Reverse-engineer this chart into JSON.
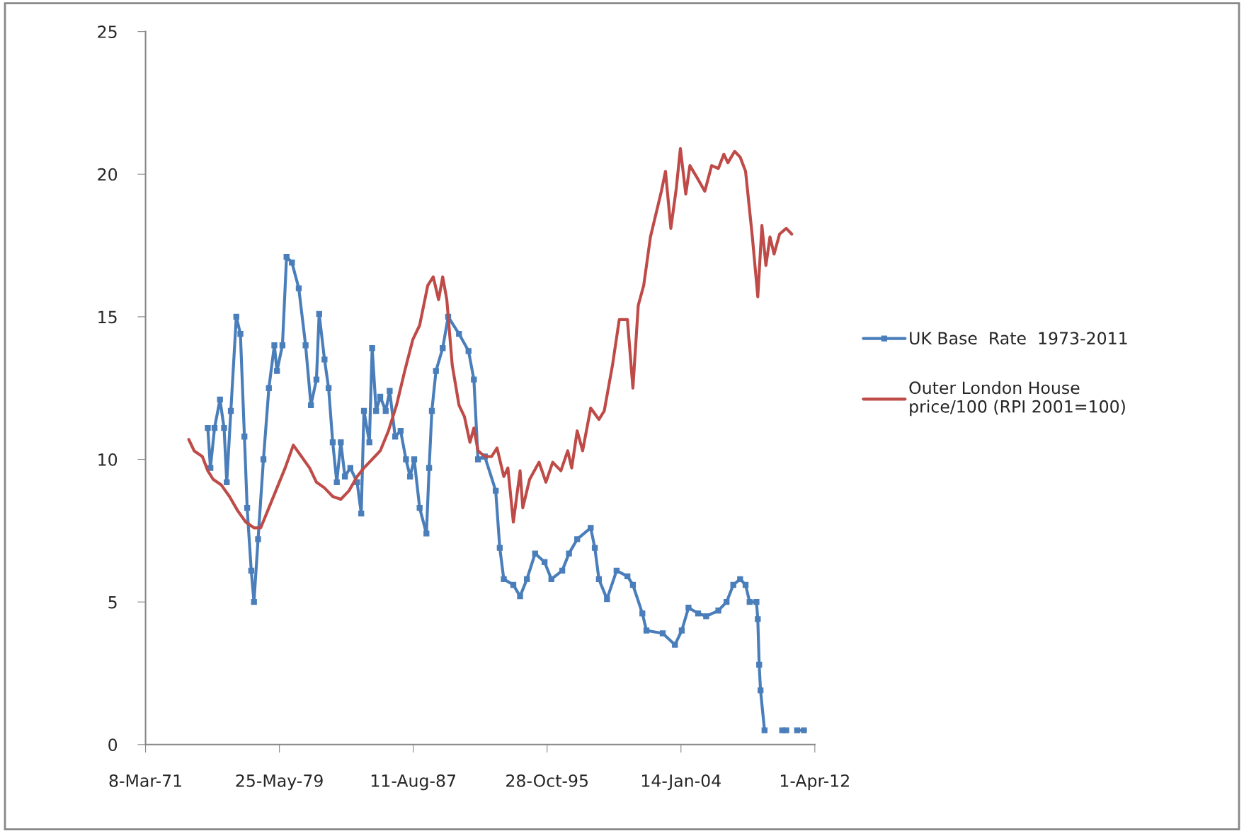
{
  "chart_data": {
    "type": "line",
    "xlim": [
      "1971-03-08",
      "2012-04-01"
    ],
    "xticks": [
      {
        "value": "1971-03-08",
        "label": "8-Mar-71"
      },
      {
        "value": "1979-05-25",
        "label": "25-May-79"
      },
      {
        "value": "1987-08-11",
        "label": "11-Aug-87"
      },
      {
        "value": "1995-10-28",
        "label": "28-Oct-95"
      },
      {
        "value": "2004-01-14",
        "label": "14-Jan-04"
      },
      {
        "value": "2012-04-01",
        "label": "1-Apr-12"
      }
    ],
    "ylim": [
      0,
      25
    ],
    "yticks": [
      0,
      5,
      10,
      15,
      20,
      25
    ],
    "grid": false,
    "legend": "right",
    "series": [
      {
        "name": "UK Base  Rate  1973-2011",
        "color": "#4a7ebb",
        "marker": "square",
        "x": [
          "1975-01",
          "1975-03",
          "1975-06",
          "1975-10",
          "1976-01",
          "1976-03",
          "1976-06",
          "1976-10",
          "1977-01",
          "1977-04",
          "1977-06",
          "1977-09",
          "1977-11",
          "1978-02",
          "1978-06",
          "1978-10",
          "1979-02",
          "1979-04",
          "1979-08",
          "1979-11",
          "1980-03",
          "1980-08",
          "1981-01",
          "1981-05",
          "1981-09",
          "1981-11",
          "1982-03",
          "1982-06",
          "1982-09",
          "1982-12",
          "1983-03",
          "1983-06",
          "1983-10",
          "1984-03",
          "1984-06",
          "1984-08",
          "1984-12",
          "1985-02",
          "1985-05",
          "1985-08",
          "1985-12",
          "1986-03",
          "1986-07",
          "1986-11",
          "1987-03",
          "1987-06",
          "1987-09",
          "1988-01",
          "1988-06",
          "1988-08",
          "1988-10",
          "1989-01",
          "1989-06",
          "1989-10",
          "1990-06",
          "1991-01",
          "1991-05",
          "1991-08",
          "1992-01",
          "1992-09",
          "1992-12",
          "1993-03",
          "1993-10",
          "1994-03",
          "1994-08",
          "1995-02",
          "1995-09",
          "1996-02",
          "1996-10",
          "1997-03",
          "1997-09",
          "1998-07",
          "1998-10",
          "1999-01",
          "1999-07",
          "2000-02",
          "2000-10",
          "2001-02",
          "2001-09",
          "2001-12",
          "2002-12",
          "2003-09",
          "2004-02",
          "2004-07",
          "2005-02",
          "2005-08",
          "2006-05",
          "2006-11",
          "2007-04",
          "2007-09",
          "2008-01",
          "2008-04",
          "2008-09",
          "2008-10",
          "2008-11",
          "2008-12",
          "2009-03",
          "2009-10",
          "2010-04",
          "2010-07",
          "2010-10",
          "2011-03",
          "2011-08"
        ],
        "values": [
          11.1,
          9.7,
          11.1,
          12.1,
          11.1,
          9.2,
          11.7,
          15.0,
          14.4,
          10.8,
          8.3,
          6.1,
          5.0,
          7.2,
          10.0,
          12.5,
          14.0,
          13.1,
          14.0,
          17.1,
          16.9,
          16.0,
          14.0,
          11.9,
          12.8,
          15.1,
          13.5,
          12.5,
          10.6,
          9.2,
          10.6,
          9.4,
          9.7,
          9.2,
          8.1,
          11.7,
          10.6,
          13.9,
          11.7,
          12.2,
          11.7,
          12.4,
          10.8,
          11.0,
          10.0,
          9.4,
          10.0,
          8.3,
          7.4,
          9.7,
          11.7,
          13.1,
          13.9,
          15.0,
          14.4,
          13.8,
          12.8,
          10.0,
          10.1,
          8.9,
          6.9,
          5.8,
          5.6,
          5.2,
          5.8,
          6.7,
          6.4,
          5.8,
          6.1,
          6.7,
          7.2,
          7.6,
          6.9,
          5.8,
          5.1,
          6.1,
          5.9,
          5.6,
          4.6,
          4.0,
          3.9,
          3.5,
          4.0,
          4.8,
          4.6,
          4.5,
          4.7,
          5.0,
          5.6,
          5.8,
          5.6,
          5.0,
          5.0,
          4.4,
          2.8,
          1.9,
          0.5,
          null,
          0.5,
          0.5,
          null,
          0.5,
          0.5
        ]
      },
      {
        "name": "Outer London House\nprice/100 (RPI 2001=100)",
        "color": "#be4b48",
        "marker": "none",
        "x": [
          "1973-11",
          "1974-03",
          "1974-09",
          "1975-01",
          "1975-05",
          "1975-11",
          "1976-05",
          "1976-11",
          "1977-05",
          "1977-11",
          "1978-04",
          "1978-10",
          "1979-04",
          "1979-10",
          "1980-04",
          "1980-10",
          "1981-04",
          "1981-09",
          "1982-03",
          "1982-09",
          "1983-03",
          "1983-09",
          "1984-03",
          "1984-08",
          "1985-02",
          "1985-08",
          "1986-02",
          "1986-08",
          "1987-02",
          "1987-08",
          "1988-01",
          "1988-07",
          "1988-11",
          "1989-03",
          "1989-06",
          "1989-09",
          "1990-01",
          "1990-06",
          "1990-10",
          "1991-02",
          "1991-05",
          "1991-08",
          "1992-01",
          "1992-06",
          "1992-10",
          "1993-03",
          "1993-06",
          "1993-10",
          "1994-03",
          "1994-05",
          "1994-10",
          "1995-05",
          "1995-10",
          "1996-03",
          "1996-09",
          "1997-02",
          "1997-05",
          "1997-09",
          "1998-01",
          "1998-07",
          "1999-01",
          "1999-05",
          "1999-11",
          "2000-04",
          "2000-10",
          "2001-02",
          "2001-06",
          "2001-10",
          "2002-03",
          "2002-08",
          "2002-11",
          "2003-02",
          "2003-06",
          "2003-10",
          "2004-01",
          "2004-05",
          "2004-08",
          "2005-01",
          "2005-07",
          "2005-12",
          "2006-05",
          "2006-09",
          "2006-12",
          "2007-05",
          "2007-09",
          "2008-01",
          "2008-06",
          "2008-10",
          "2009-01",
          "2009-04",
          "2009-07",
          "2009-10",
          "2010-02",
          "2010-07",
          "2010-11"
        ],
        "values": [
          10.7,
          10.3,
          10.1,
          9.6,
          9.3,
          9.1,
          8.7,
          8.2,
          7.8,
          7.6,
          7.6,
          8.3,
          9.0,
          9.7,
          10.5,
          10.1,
          9.7,
          9.2,
          9.0,
          8.7,
          8.6,
          8.9,
          9.4,
          9.7,
          10.0,
          10.3,
          11.0,
          11.9,
          13.1,
          14.2,
          14.7,
          16.1,
          16.4,
          15.6,
          16.4,
          15.6,
          13.3,
          11.9,
          11.5,
          10.6,
          11.1,
          10.3,
          10.1,
          10.1,
          10.4,
          9.4,
          9.7,
          7.8,
          9.6,
          8.3,
          9.3,
          9.9,
          9.2,
          9.9,
          9.6,
          10.3,
          9.7,
          11.0,
          10.3,
          11.8,
          11.4,
          11.7,
          13.3,
          14.9,
          14.9,
          12.5,
          15.4,
          16.1,
          17.8,
          18.8,
          19.4,
          20.1,
          18.1,
          19.5,
          20.9,
          19.3,
          20.3,
          19.9,
          19.4,
          20.3,
          20.2,
          20.7,
          20.4,
          20.8,
          20.6,
          20.1,
          17.8,
          15.7,
          18.2,
          16.8,
          17.8,
          17.2,
          17.9,
          18.1,
          17.9
        ]
      }
    ]
  }
}
